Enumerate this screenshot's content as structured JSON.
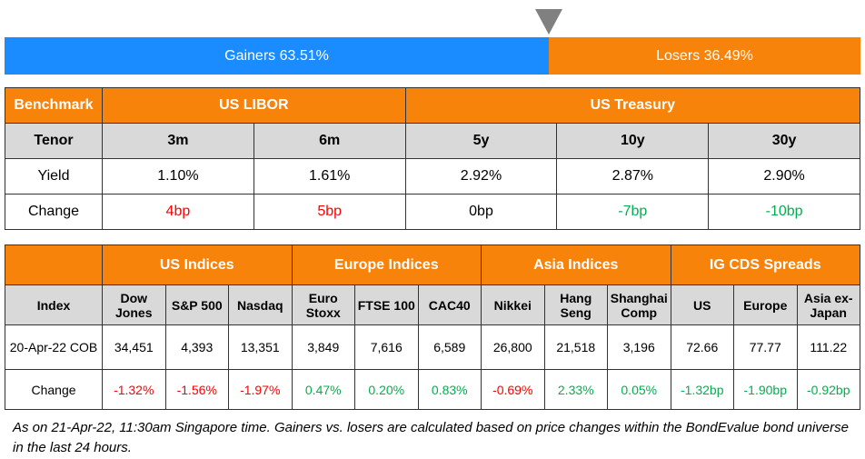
{
  "breadth": {
    "gainers_label": "Gainers 63.51%",
    "losers_label": "Losers 36.49%",
    "gainers_pct": 63.51,
    "losers_pct": 36.49,
    "colors": {
      "gainers": "#1a8cff",
      "losers": "#f7830b",
      "header": "#f7830b",
      "negative": "#ff0000",
      "positive": "#00b050"
    }
  },
  "rates": {
    "headers": [
      "Benchmark",
      "US LIBOR",
      "US Treasury"
    ],
    "tenor_label": "Tenor",
    "tenors": [
      "3m",
      "6m",
      "5y",
      "10y",
      "30y"
    ],
    "yield_label": "Yield",
    "yields": [
      "1.10%",
      "1.61%",
      "2.92%",
      "2.87%",
      "2.90%"
    ],
    "change_label": "Change",
    "changes": [
      "4bp",
      "5bp",
      "0bp",
      "-7bp",
      "-10bp"
    ]
  },
  "indices": {
    "groups": [
      "US Indices",
      "Europe Indices",
      "Asia Indices",
      "IG CDS Spreads"
    ],
    "index_label": "Index",
    "names": [
      "Dow Jones",
      "S&P 500",
      "Nasdaq",
      "Euro Stoxx",
      "FTSE 100",
      "CAC40",
      "Nikkei",
      "Hang Seng",
      "Shanghai Comp",
      "US",
      "Europe",
      "Asia ex-Japan"
    ],
    "date_label": "20-Apr-22 COB",
    "values": [
      "34,451",
      "4,393",
      "13,351",
      "3,849",
      "7,616",
      "6,589",
      "26,800",
      "21,518",
      "3,196",
      "72.66",
      "77.77",
      "111.22"
    ],
    "change_label": "Change",
    "changes": [
      "-1.32%",
      "-1.56%",
      "-1.97%",
      "0.47%",
      "0.20%",
      "0.83%",
      "-0.69%",
      "2.33%",
      "0.05%",
      "-1.32bp",
      "-1.90bp",
      "-0.92bp"
    ]
  },
  "note": "As on 21-Apr-22, 11:30am Singapore time. Gainers vs. losers are calculated based on price changes within the BondEvalue bond universe in the last 24 hours."
}
